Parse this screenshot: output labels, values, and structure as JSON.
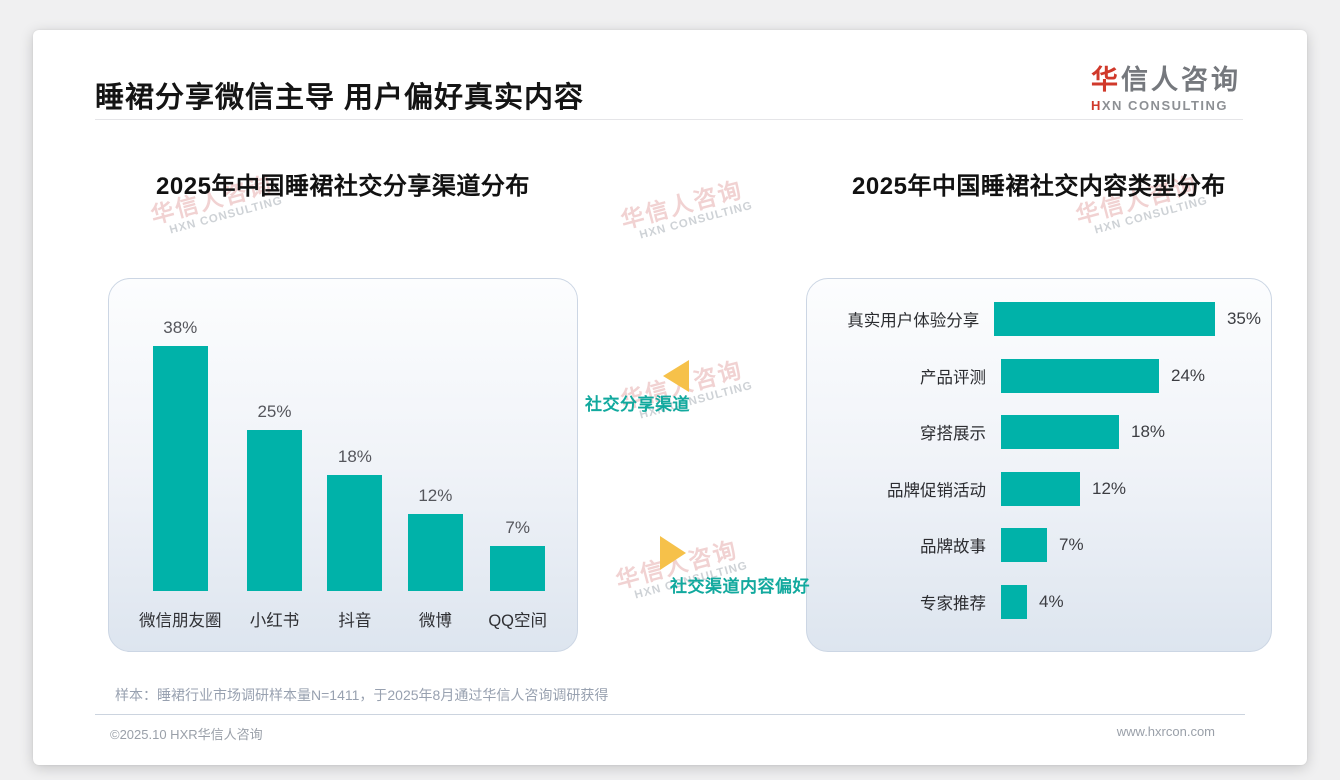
{
  "header": {
    "title": "睡裙分享微信主导 用户偏好真实内容",
    "logo": {
      "name_accent": "华",
      "name_rest": "信人咨询",
      "subtitle_accent": "H",
      "subtitle_rest": "XN CONSULTING"
    }
  },
  "connectors": {
    "share_channel_label": "社交分享渠道",
    "content_preference_label": "社交渠道内容偏好"
  },
  "watermark": {
    "cjk": "华信人咨询",
    "latin": "HXN CONSULTING"
  },
  "chart_data": [
    {
      "type": "bar",
      "orientation": "vertical",
      "title": "2025年中国睡裙社交分享渠道分布",
      "categories": [
        "微信朋友圈",
        "小红书",
        "抖音",
        "微博",
        "QQ空间"
      ],
      "values": [
        38,
        25,
        18,
        12,
        7
      ],
      "unit": "%",
      "bar_color": "#00b2a9",
      "ylim": [
        0,
        40
      ],
      "grid": false,
      "value_labels": true,
      "legend": false
    },
    {
      "type": "bar",
      "orientation": "horizontal",
      "title": "2025年中国睡裙社交内容类型分布",
      "categories": [
        "真实用户体验分享",
        "产品评测",
        "穿搭展示",
        "品牌促销活动",
        "品牌故事",
        "专家推荐"
      ],
      "values": [
        35,
        24,
        18,
        12,
        7,
        4
      ],
      "unit": "%",
      "bar_color": "#00b2a9",
      "xlim": [
        0,
        40
      ],
      "grid": false,
      "value_labels": true,
      "legend": false
    }
  ],
  "footnote": "样本：睡裙行业市场调研样本量N=1411，于2025年8月通过华信人咨询调研获得",
  "footer": {
    "copyright": "©2025.10 HXR华信人咨询",
    "website": "www.hxrcon.com"
  },
  "colors": {
    "teal": "#00b2a9",
    "teal_text": "#12a99e",
    "yellow": "#f6c14a",
    "red": "#d0392b"
  }
}
